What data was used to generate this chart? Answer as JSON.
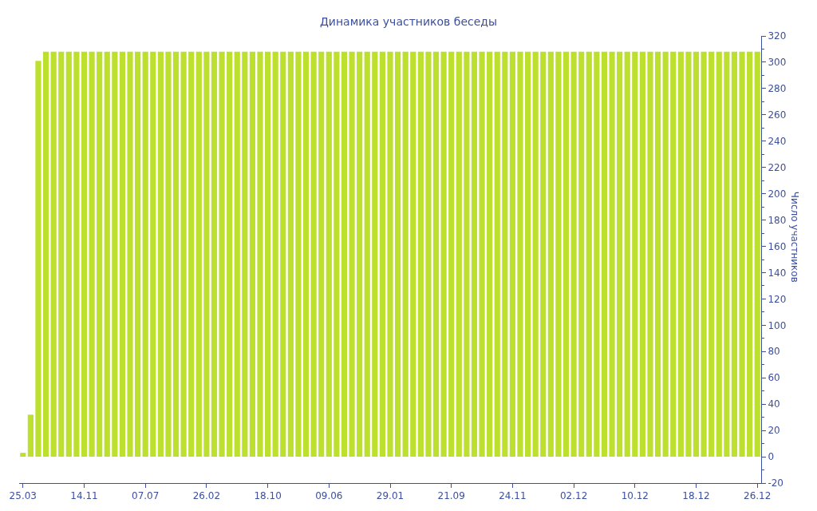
{
  "chart_data": {
    "type": "bar",
    "title": "Динамика участников беседы",
    "ylabel": "Число участников",
    "categories": [
      "25.03",
      null,
      null,
      null,
      null,
      null,
      null,
      null,
      "14.11",
      null,
      null,
      null,
      null,
      null,
      null,
      null,
      "07.07",
      null,
      null,
      null,
      null,
      null,
      null,
      null,
      "26.02",
      null,
      null,
      null,
      null,
      null,
      null,
      null,
      "18.10",
      null,
      null,
      null,
      null,
      null,
      null,
      null,
      "09.06",
      null,
      null,
      null,
      null,
      null,
      null,
      null,
      "29.01",
      null,
      null,
      null,
      null,
      null,
      null,
      null,
      "21.09",
      null,
      null,
      null,
      null,
      null,
      null,
      null,
      "24.11",
      null,
      null,
      null,
      null,
      null,
      null,
      null,
      "02.12",
      null,
      null,
      null,
      null,
      null,
      null,
      null,
      "10.12",
      null,
      null,
      null,
      null,
      null,
      null,
      null,
      "18.12",
      null,
      null,
      null,
      null,
      null,
      null,
      null,
      "26.12"
    ],
    "values": [
      3,
      32,
      301,
      308,
      308,
      308,
      308,
      308,
      308,
      308,
      308,
      308,
      308,
      308,
      308,
      308,
      308,
      308,
      308,
      308,
      308,
      308,
      308,
      308,
      308,
      308,
      308,
      308,
      308,
      308,
      308,
      308,
      308,
      308,
      308,
      308,
      308,
      308,
      308,
      308,
      308,
      308,
      308,
      308,
      308,
      308,
      308,
      308,
      308,
      308,
      308,
      308,
      308,
      308,
      308,
      308,
      308,
      308,
      308,
      308,
      308,
      308,
      308,
      308,
      308,
      308,
      308,
      308,
      308,
      308,
      308,
      308,
      308,
      308,
      308,
      308,
      308,
      308,
      308,
      308,
      308,
      308,
      308,
      308,
      308,
      308,
      308,
      308,
      308,
      308,
      308,
      308,
      308,
      308,
      308,
      308,
      308
    ],
    "color": "#bde02e",
    "ylim": [
      -20,
      320
    ],
    "yticks": [
      -20,
      0,
      20,
      40,
      60,
      80,
      100,
      120,
      140,
      160,
      180,
      200,
      220,
      240,
      260,
      280,
      300,
      320
    ]
  }
}
